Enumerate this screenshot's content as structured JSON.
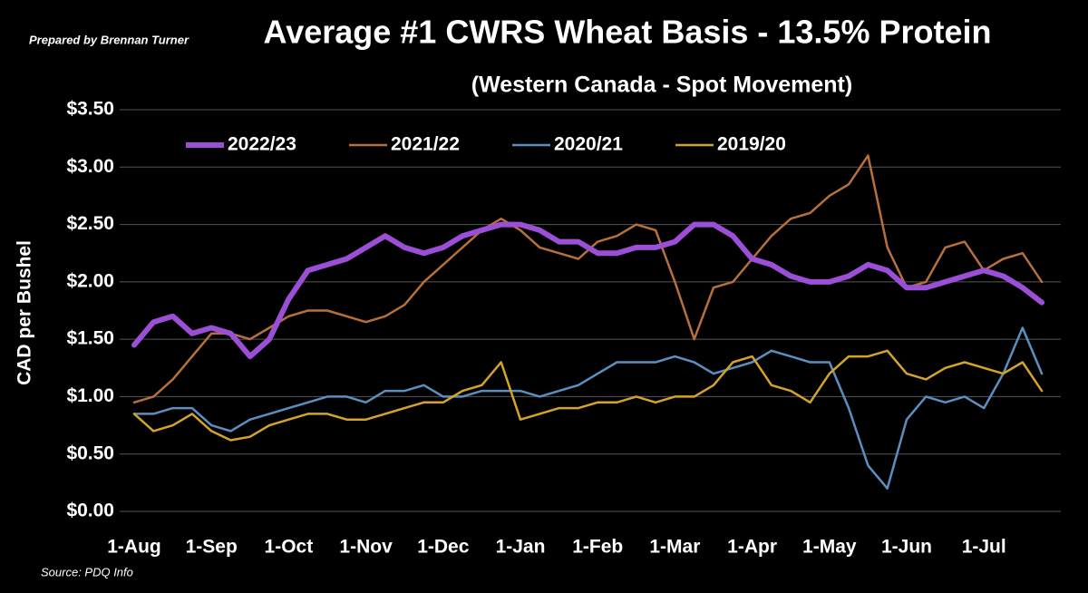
{
  "chart_data": {
    "type": "line",
    "title": "Average #1 CWRS Wheat Basis - 13.5% Protein",
    "subtitle": "(Western Canada - Spot Movement)",
    "ylabel": "CAD per Bushel",
    "credit": "Prepared by Brennan Turner",
    "source": "Source: PDQ Info",
    "categories": [
      "1-Aug",
      null,
      null,
      null,
      "1-Sep",
      null,
      null,
      null,
      "1-Oct",
      null,
      null,
      null,
      "1-Nov",
      null,
      null,
      null,
      "1-Dec",
      null,
      null,
      null,
      "1-Jan",
      null,
      null,
      null,
      "1-Feb",
      null,
      null,
      null,
      "1-Mar",
      null,
      null,
      null,
      "1-Apr",
      null,
      null,
      null,
      "1-May",
      null,
      null,
      null,
      "1-Jun",
      null,
      null,
      null,
      "1-Jul",
      null,
      null,
      null
    ],
    "series": [
      {
        "name": "2022/23",
        "color": "#9b4fd6",
        "width": 6,
        "values": [
          1.45,
          1.65,
          1.7,
          1.55,
          1.6,
          1.55,
          1.35,
          1.5,
          1.85,
          2.1,
          2.15,
          2.2,
          2.3,
          2.4,
          2.3,
          2.25,
          2.3,
          2.4,
          2.45,
          2.5,
          2.5,
          2.45,
          2.35,
          2.35,
          2.25,
          2.25,
          2.3,
          2.3,
          2.35,
          2.5,
          2.5,
          2.4,
          2.2,
          2.15,
          2.05,
          2.0,
          2.0,
          2.05,
          2.15,
          2.1,
          1.95,
          1.95,
          2.0,
          2.05,
          2.1,
          2.05,
          1.95,
          1.82
        ]
      },
      {
        "name": "2021/22",
        "color": "#b8703a",
        "width": 2.5,
        "values": [
          0.95,
          1.0,
          1.15,
          1.35,
          1.55,
          1.55,
          1.5,
          1.6,
          1.7,
          1.75,
          1.75,
          1.7,
          1.65,
          1.7,
          1.8,
          2.0,
          2.15,
          2.3,
          2.45,
          2.55,
          2.45,
          2.3,
          2.25,
          2.2,
          2.35,
          2.4,
          2.5,
          2.45,
          2.0,
          1.5,
          1.95,
          2.0,
          2.2,
          2.4,
          2.55,
          2.6,
          2.75,
          2.85,
          3.1,
          2.3,
          1.95,
          2.0,
          2.3,
          2.35,
          2.1,
          2.2,
          2.25,
          2.0
        ]
      },
      {
        "name": "2020/21",
        "color": "#5b8fc0",
        "width": 2.5,
        "values": [
          0.85,
          0.85,
          0.9,
          0.9,
          0.75,
          0.7,
          0.8,
          0.85,
          0.9,
          0.95,
          1.0,
          1.0,
          0.95,
          1.05,
          1.05,
          1.1,
          1.0,
          1.0,
          1.05,
          1.05,
          1.05,
          1.0,
          1.05,
          1.1,
          1.2,
          1.3,
          1.3,
          1.3,
          1.35,
          1.3,
          1.2,
          1.25,
          1.3,
          1.4,
          1.35,
          1.3,
          1.3,
          0.9,
          0.4,
          0.2,
          0.8,
          1.0,
          0.95,
          1.0,
          0.9,
          1.2,
          1.6,
          1.2
        ]
      },
      {
        "name": "2019/20",
        "color": "#d4a32a",
        "width": 2.5,
        "values": [
          0.85,
          0.7,
          0.75,
          0.85,
          0.7,
          0.62,
          0.65,
          0.75,
          0.8,
          0.85,
          0.85,
          0.8,
          0.8,
          0.85,
          0.9,
          0.95,
          0.95,
          1.05,
          1.1,
          1.3,
          0.8,
          0.85,
          0.9,
          0.9,
          0.95,
          0.95,
          1.0,
          0.95,
          1.0,
          1.0,
          1.1,
          1.3,
          1.35,
          1.1,
          1.05,
          0.95,
          1.2,
          1.35,
          1.35,
          1.4,
          1.2,
          1.15,
          1.25,
          1.3,
          1.25,
          1.2,
          1.3,
          1.05
        ]
      }
    ],
    "ylim": [
      0,
      3.5
    ],
    "yticks": [
      {
        "value": 0,
        "label": "$0.00"
      },
      {
        "value": 0.5,
        "label": "$0.50"
      },
      {
        "value": 1,
        "label": "$1.00"
      },
      {
        "value": 1.5,
        "label": "$1.50"
      },
      {
        "value": 2,
        "label": "$2.00"
      },
      {
        "value": 2.5,
        "label": "$2.50"
      },
      {
        "value": 3,
        "label": "$3.00"
      },
      {
        "value": 3.5,
        "label": "$3.50"
      }
    ],
    "grid": true,
    "legend": "top"
  }
}
